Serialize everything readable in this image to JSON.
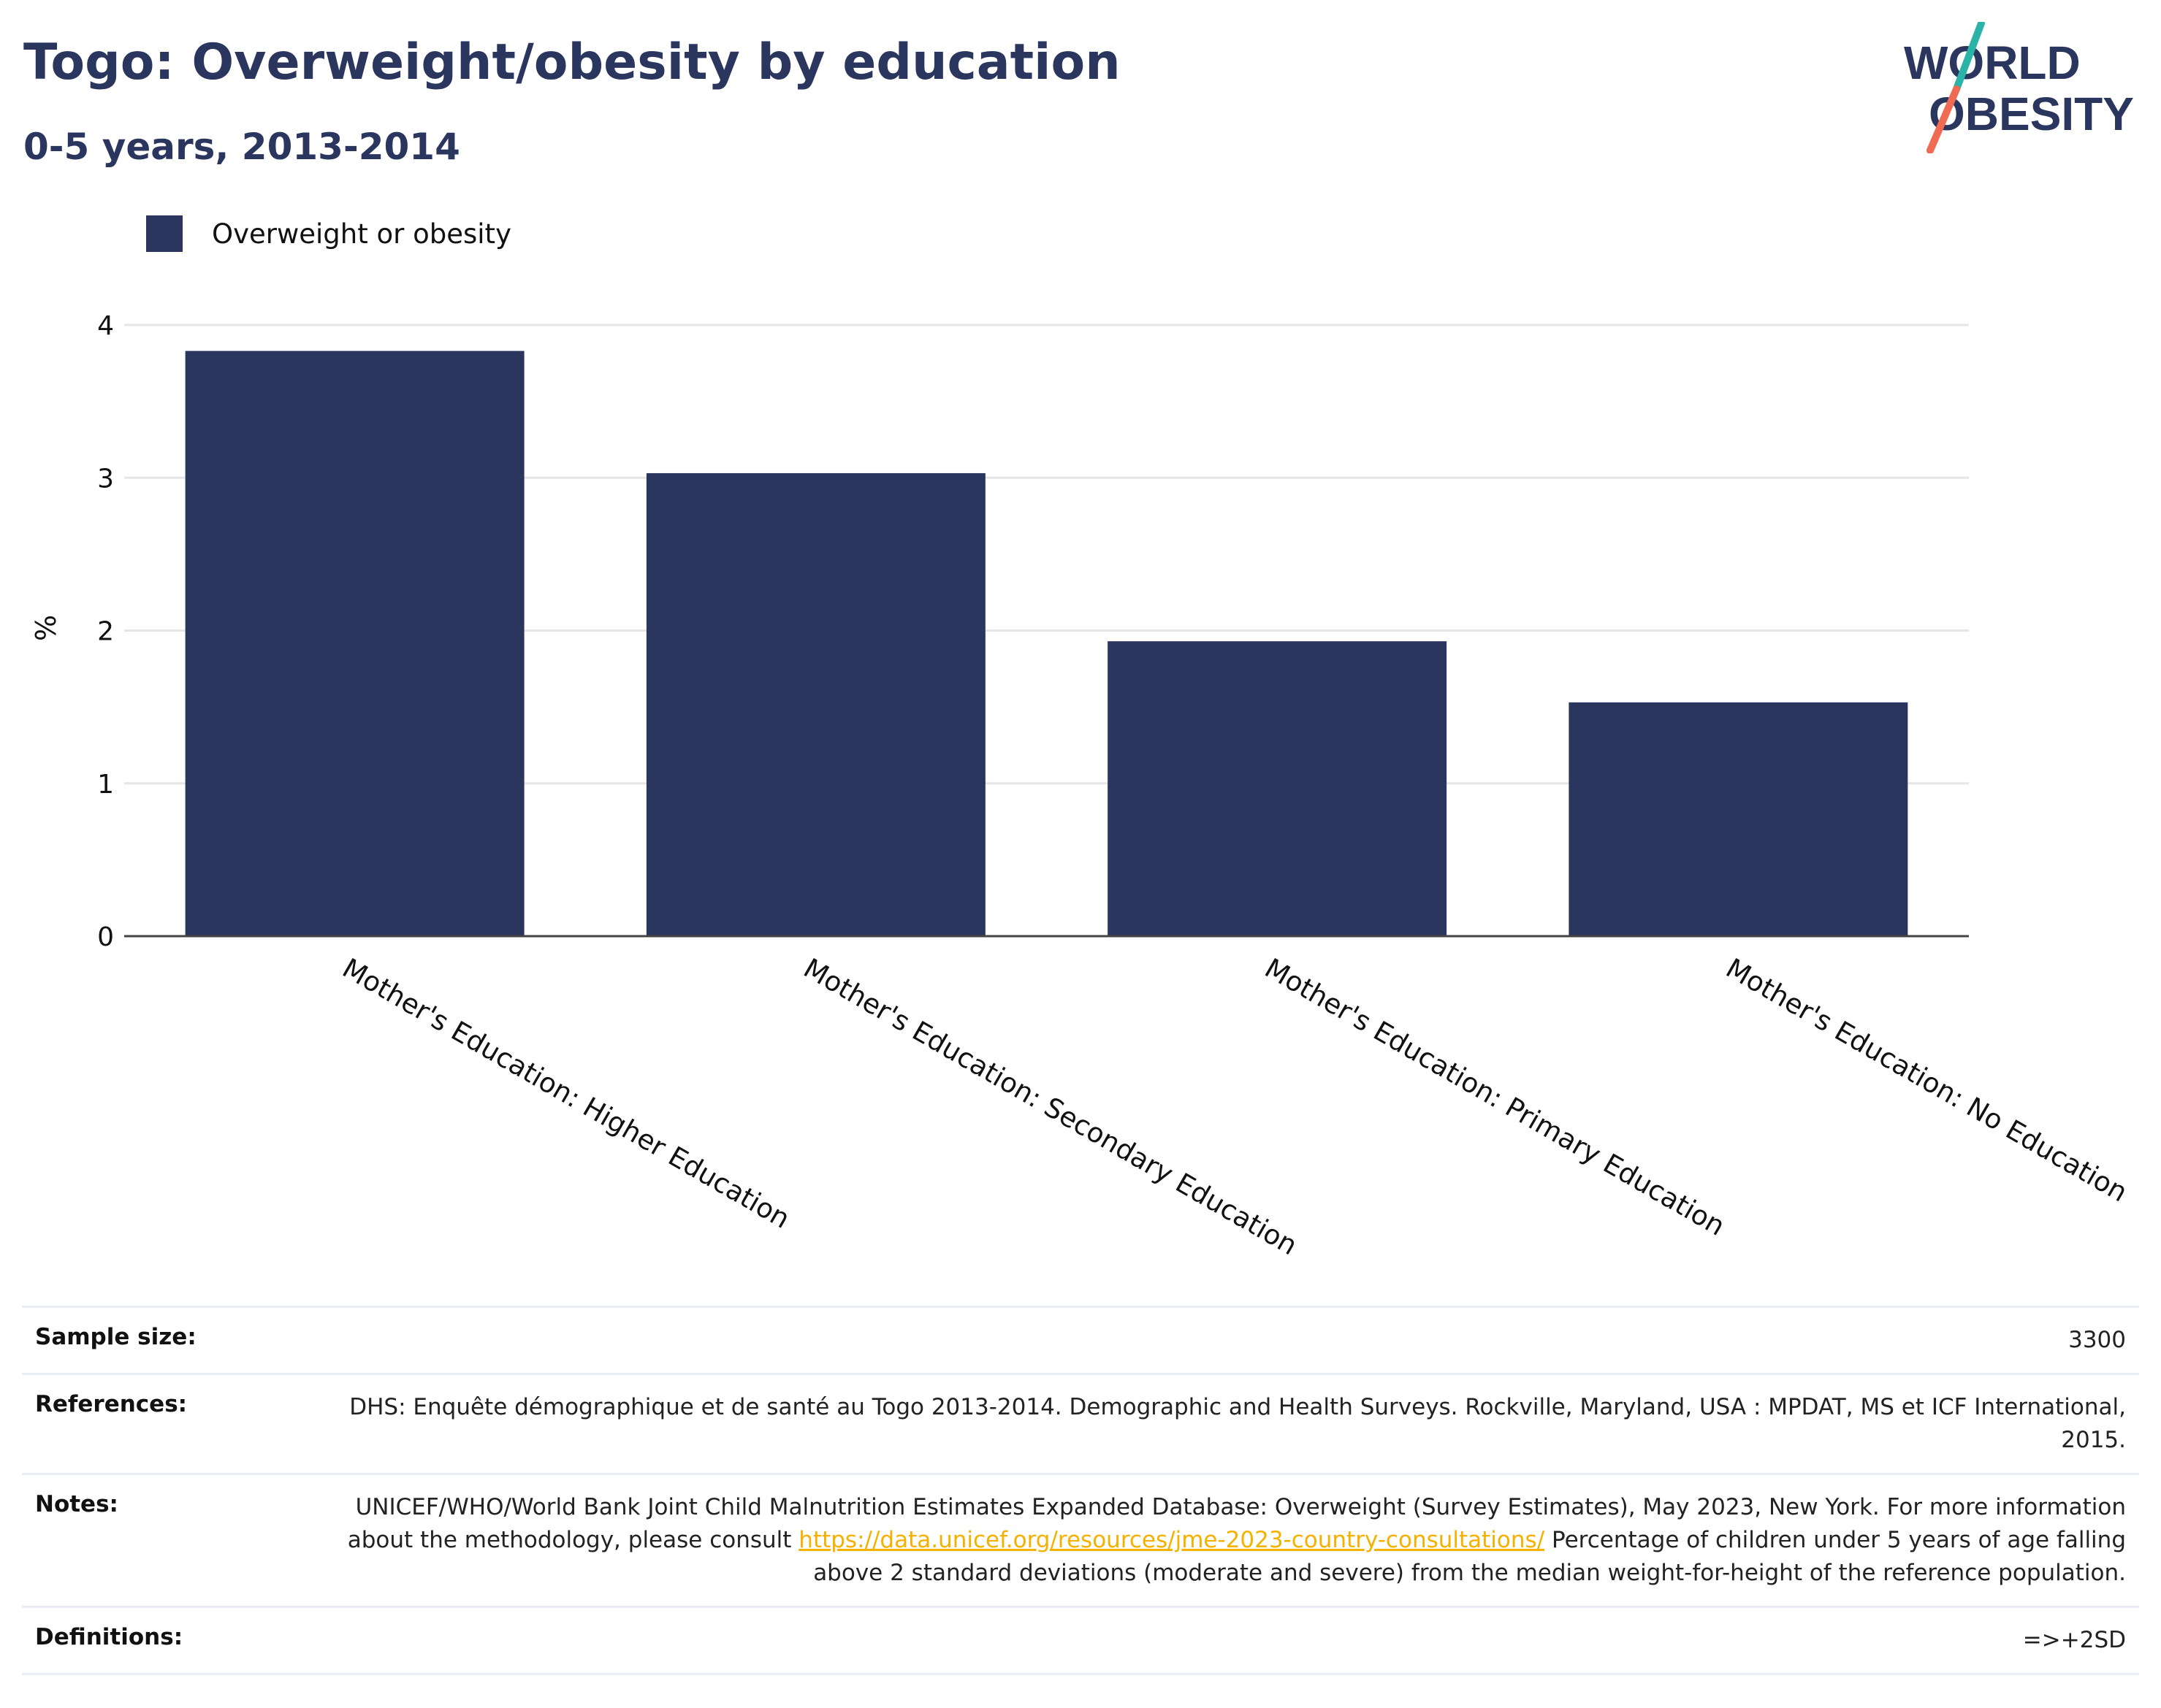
{
  "header": {
    "title": "Togo: Overweight/obesity by education",
    "subtitle": "0-5 years, 2013-2014"
  },
  "logo": {
    "line1": "WORLD",
    "line2": "OBESITY",
    "colors": {
      "text": "#2b365f",
      "slash_top": "#2bb3a8",
      "slash_bottom": "#ef6b53"
    }
  },
  "colors": {
    "bar": "#2b365f",
    "grid": "#e6e6e6",
    "axis": "#444444"
  },
  "chart_data": {
    "type": "bar",
    "title": "Togo: Overweight/obesity by education",
    "subtitle": "0-5 years, 2013-2014",
    "ylabel": "%",
    "xlabel": "",
    "ylim": [
      0,
      4
    ],
    "yticks": [
      0,
      1,
      2,
      3,
      4
    ],
    "grid": true,
    "legend_position": "top-left",
    "categories": [
      "Mother's Education: Higher Education",
      "Mother's Education: Secondary Education",
      "Mother's Education: Primary Education",
      "Mother's Education: No Education"
    ],
    "series": [
      {
        "name": "Overweight or obesity",
        "values": [
          3.83,
          3.03,
          1.93,
          1.53
        ]
      }
    ]
  },
  "info": {
    "sample_size": {
      "label": "Sample size:",
      "value": "3300"
    },
    "references": {
      "label": "References:",
      "value": "DHS: Enquête démographique et de santé au Togo 2013-2014. Demographic and Health Surveys. Rockville, Maryland, USA : MPDAT, MS et ICF International, 2015."
    },
    "notes": {
      "label": "Notes:",
      "text_before": "UNICEF/WHO/World Bank Joint Child Malnutrition Estimates Expanded Database: Overweight (Survey Estimates), May 2023, New York. For more information about the methodology, please consult ",
      "link": "https://data.unicef.org/resources/jme-2023-country-consultations/",
      "text_after": " Percentage of children under 5 years of age falling above 2 standard deviations (moderate and severe) from the median weight-for-height of the reference population."
    },
    "definitions": {
      "label": "Definitions:",
      "value": "=>+2SD"
    }
  }
}
